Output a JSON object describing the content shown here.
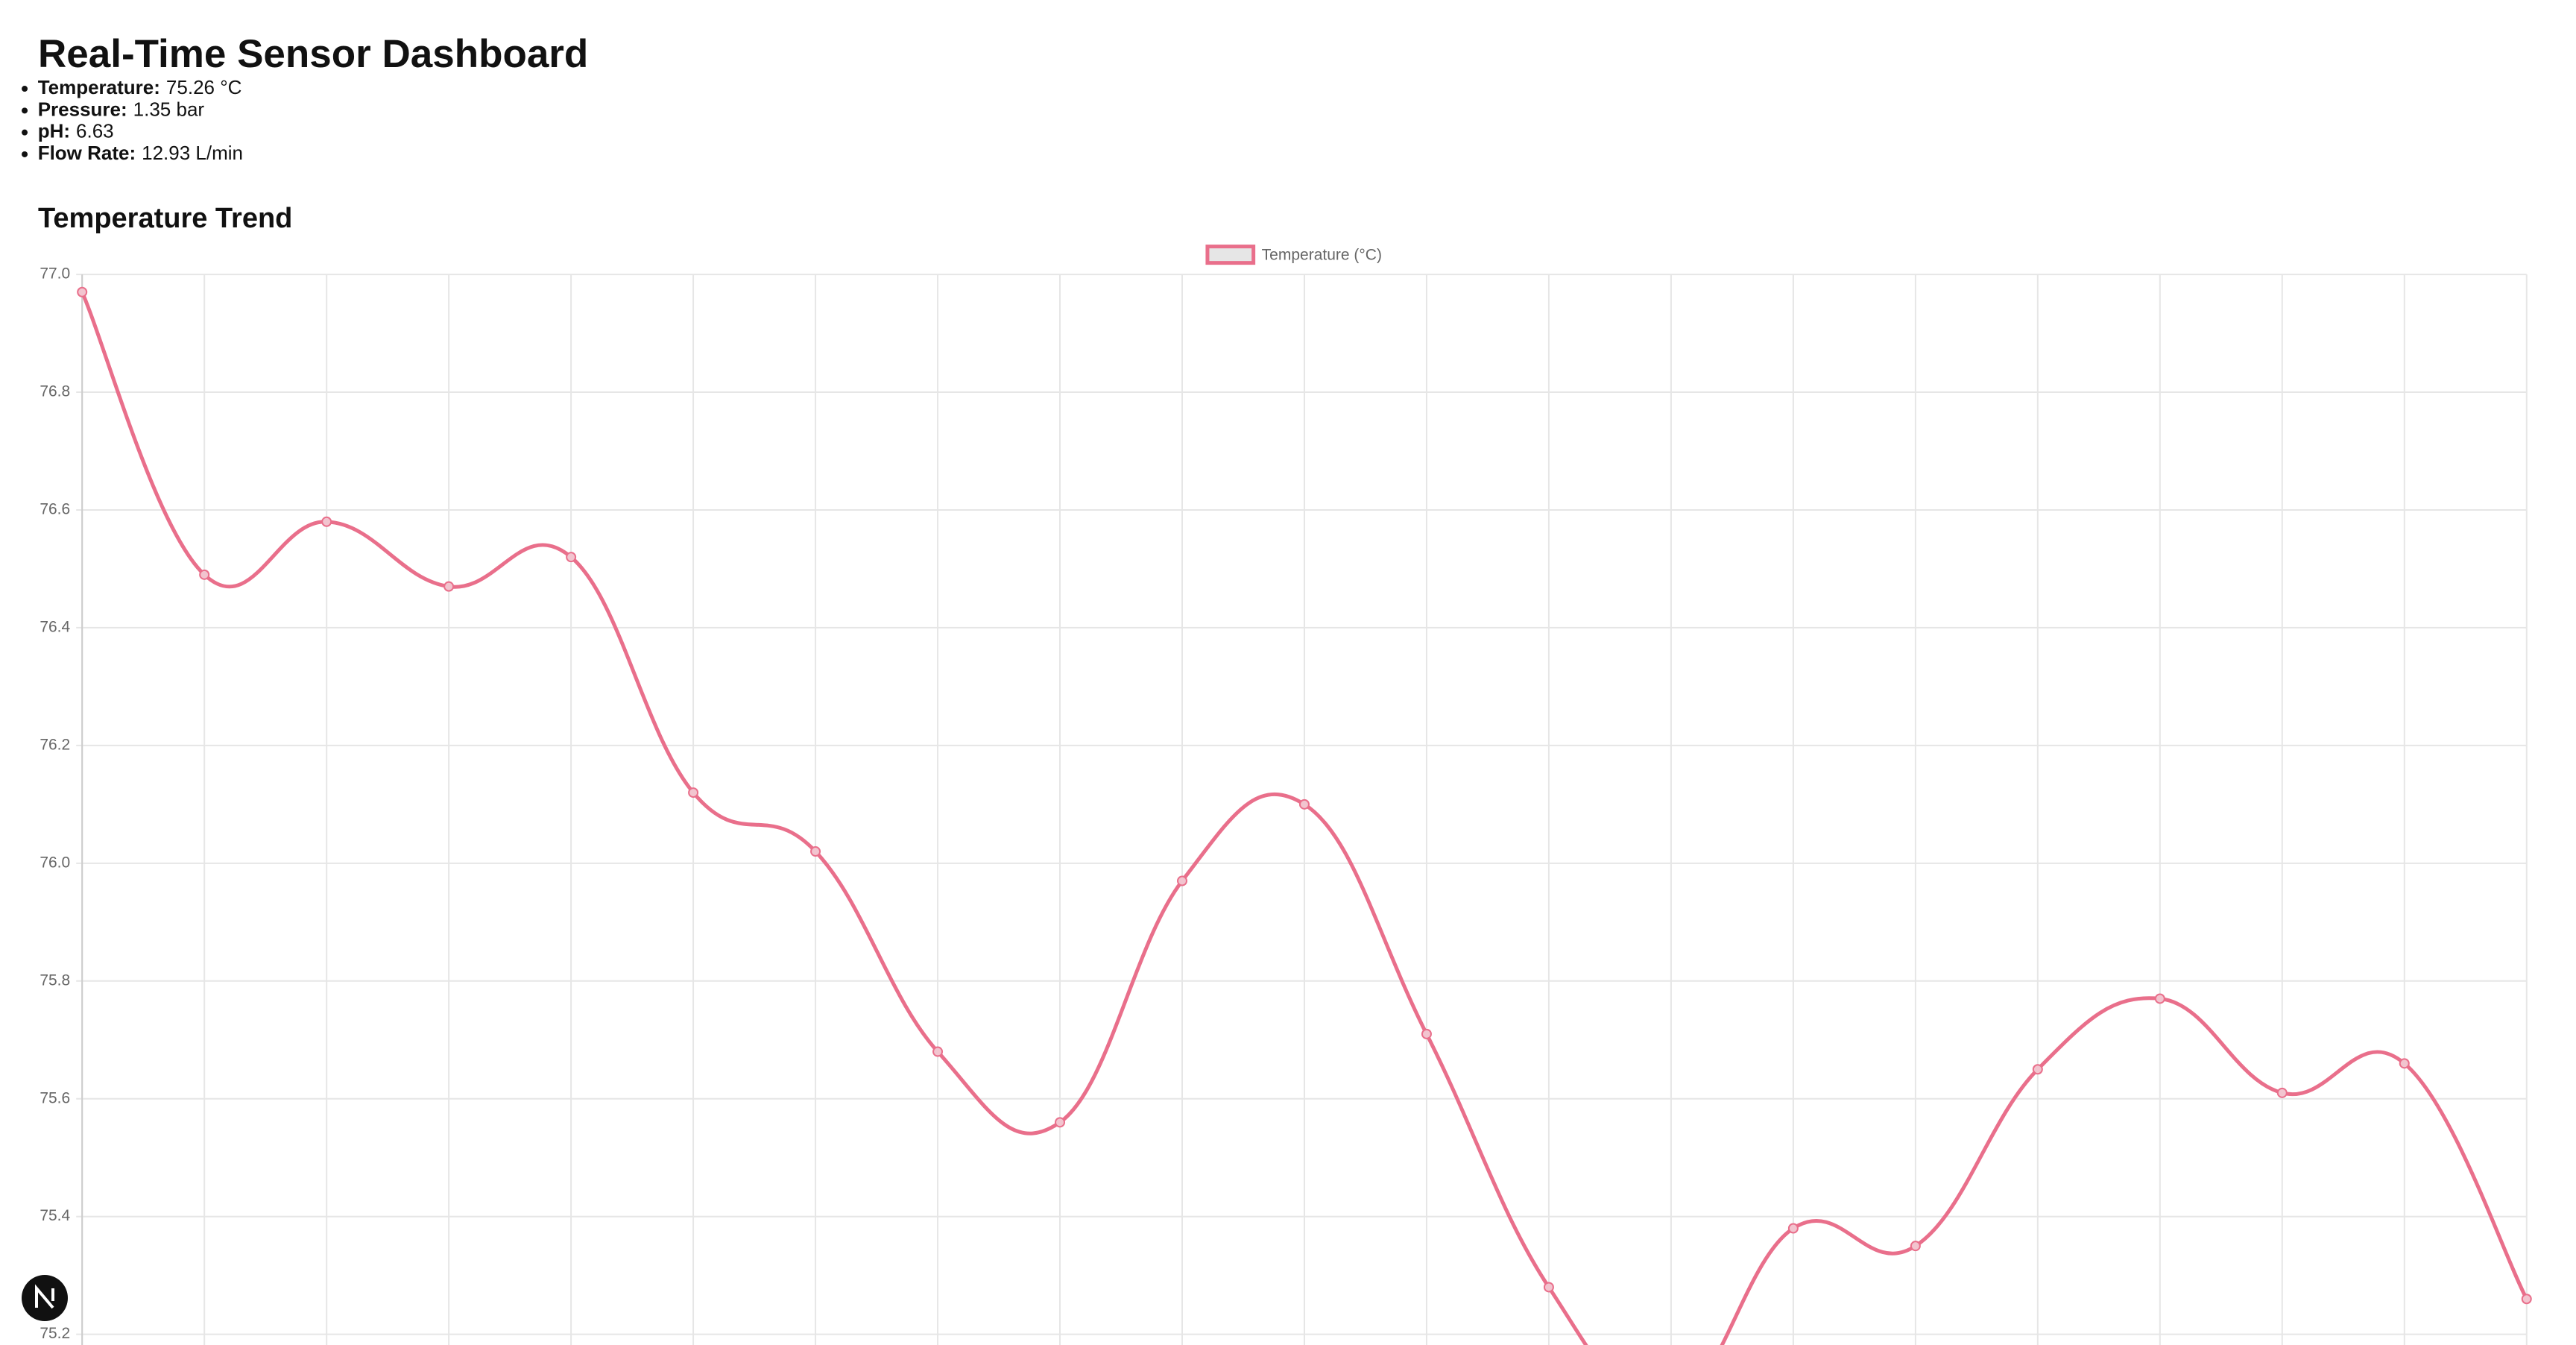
{
  "title": "Real-Time Sensor Dashboard",
  "metrics": [
    {
      "label": "Temperature:",
      "value": "75.26 °C"
    },
    {
      "label": "Pressure:",
      "value": "1.35 bar"
    },
    {
      "label": "pH:",
      "value": "6.63"
    },
    {
      "label": "Flow Rate:",
      "value": "12.93 L/min"
    }
  ],
  "chart_data": {
    "type": "line",
    "title": "Temperature Trend",
    "series": [
      {
        "name": "Temperature (°C)",
        "color": "#e96f8b",
        "values": [
          76.97,
          76.49,
          76.58,
          76.47,
          76.52,
          76.12,
          76.02,
          75.68,
          75.56,
          75.97,
          76.1,
          75.71,
          75.28,
          75.08,
          75.38,
          75.35,
          75.65,
          75.77,
          75.61,
          75.66,
          75.26
        ]
      }
    ],
    "ylim": [
      75.2,
      77.0
    ],
    "yticks": [
      75.2,
      75.4,
      75.6,
      75.8,
      {
        "value": 76,
        "label": "76.0"
      },
      76.2,
      76.4,
      76.6,
      76.8,
      {
        "value": 77,
        "label": "77.0"
      }
    ],
    "grid": true,
    "legend": "top"
  }
}
